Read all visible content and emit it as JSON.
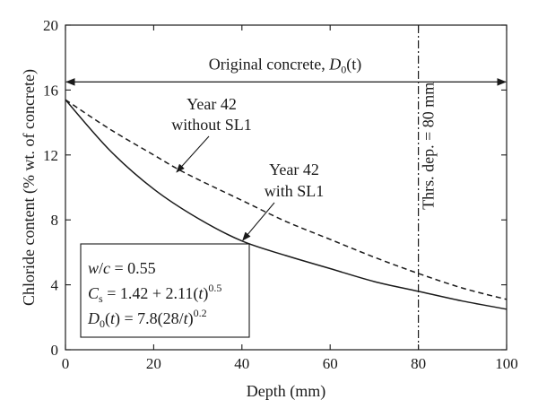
{
  "chart_data": {
    "type": "line",
    "xlabel": "Depth (mm)",
    "ylabel": "Chloride content (% wt. of concrete)",
    "xlim": [
      0,
      100
    ],
    "ylim": [
      0,
      20
    ],
    "xticks": [
      "0",
      "20",
      "40",
      "60",
      "80",
      "100"
    ],
    "yticks": [
      "0",
      "4",
      "8",
      "12",
      "16",
      "20"
    ],
    "grid": false,
    "series": [
      {
        "style": "dashed",
        "color": "#1a1a1a",
        "x": [
          0,
          10,
          20,
          25,
          30,
          40,
          50,
          60,
          70,
          80,
          90,
          100
        ],
        "y": [
          15.4,
          13.6,
          12.0,
          11.2,
          10.5,
          9.2,
          7.9,
          6.8,
          5.7,
          4.7,
          3.8,
          3.1
        ]
      },
      {
        "style": "solid",
        "color": "#1a1a1a",
        "x": [
          0,
          10,
          20,
          30,
          40,
          50,
          60,
          70,
          80,
          90,
          100
        ],
        "y": [
          15.4,
          12.3,
          9.9,
          8.1,
          6.7,
          5.8,
          5.0,
          4.2,
          3.6,
          3.0,
          2.5
        ]
      }
    ],
    "annotations": {
      "without": {
        "line1": "Year 42",
        "line2": "without SL1",
        "points_to": [
          25,
          11.0
        ]
      },
      "with": {
        "line1": "Year 42",
        "line2": "with SL1",
        "points_to": [
          40,
          6.8
        ]
      },
      "original": {
        "text": "Original concrete, ",
        "d": "D",
        "sub": "0",
        "arg": "(t)",
        "y": 16.5,
        "x_range": [
          0,
          100
        ]
      },
      "threshold": {
        "x": 80,
        "text": "Thrs. dep. = 80 mm"
      },
      "params": {
        "line1": {
          "w": "w",
          "slash": "/",
          "c": "c",
          "rest": " = 0.55"
        },
        "line2": {
          "C": "C",
          "sub": "s",
          "rest": " = 1.42 + 2.11(",
          "t": "t",
          "close": ")",
          "exp": "0.5"
        },
        "line3": {
          "D": "D",
          "sub": "0",
          "open": "(",
          "t": "t",
          "mid": ") = 7.8(28/",
          "t2": "t",
          "close": ")",
          "exp": "0.2"
        }
      }
    }
  }
}
